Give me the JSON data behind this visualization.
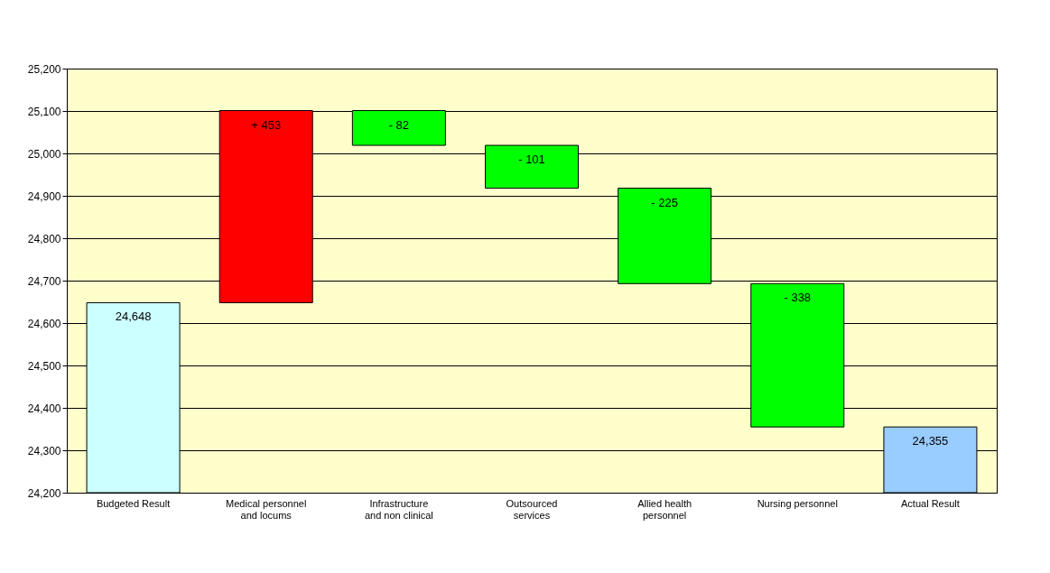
{
  "chart_data": {
    "type": "bar",
    "categories": [
      "Budgeted Result",
      "Medical personnel and locums",
      "Infrastructure and non clinical",
      "Outsourced services",
      "Allied health personnel",
      "Nursing personnel",
      "Actual Result"
    ],
    "values": [
      24648,
      453,
      -82,
      -101,
      -225,
      -338,
      24355
    ],
    "base": [
      null,
      24648,
      25101,
      25019,
      24918,
      24693,
      null
    ],
    "colors": [
      "#ccffff",
      "#ff0000",
      "#00ff00",
      "#00ff00",
      "#00ff00",
      "#00ff00",
      "#99ccff"
    ],
    "value_labels": [
      "24,648",
      "+ 453",
      "- 82",
      "- 101",
      "- 225",
      "- 338",
      "24,355"
    ],
    "ylim": [
      24200,
      25200
    ],
    "yticks": [
      {
        "value": 24200,
        "label": "24,200"
      },
      {
        "value": 24300,
        "label": "24,300"
      },
      {
        "value": 24400,
        "label": "24,400"
      },
      {
        "value": 24500,
        "label": "24,500"
      },
      {
        "value": 24600,
        "label": "24,600"
      },
      {
        "value": 24700,
        "label": "24,700"
      },
      {
        "value": 24800,
        "label": "24,800"
      },
      {
        "value": 24900,
        "label": "24,900"
      },
      {
        "value": 25000,
        "label": "25,000"
      },
      {
        "value": 25100,
        "label": "25,100"
      },
      {
        "value": 25200,
        "label": "25,200"
      }
    ],
    "grid": "y"
  }
}
